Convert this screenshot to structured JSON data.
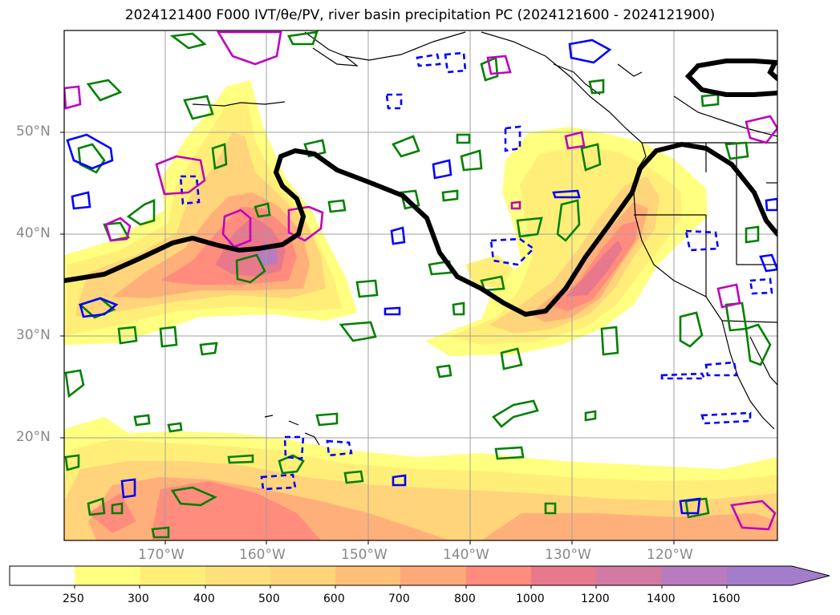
{
  "title": "2024121400 F000 IVT/θe/PV, river basin precipitation PC (2024121600 - 2024121900)",
  "lat_labels": [
    "50°N",
    "40°N",
    "30°N",
    "20°N"
  ],
  "lon_labels": [
    "170°W",
    "160°W",
    "150°W",
    "140°W",
    "130°W",
    "120°W"
  ],
  "colorbar": {
    "ticks": [
      "250",
      "300",
      "400",
      "500",
      "600",
      "700",
      "800",
      "1000",
      "1200",
      "1400",
      "1600"
    ],
    "colors": [
      "#ffffff",
      "#ffff80",
      "#ffef78",
      "#ffe07a",
      "#ffd47a",
      "#ffc07a",
      "#ffa87a",
      "#ff8c7c",
      "#e8788c",
      "#d27aa2",
      "#b87cbe",
      "#a47ccc"
    ],
    "extend": "max"
  },
  "styles": {
    "jet_line": "#000000",
    "pv_contours": "#0000ff",
    "theta_e_contours": "#008000",
    "precip_contours": "#c000c0",
    "gridlines": "#a0a0a0",
    "coastline": "#000000"
  }
}
